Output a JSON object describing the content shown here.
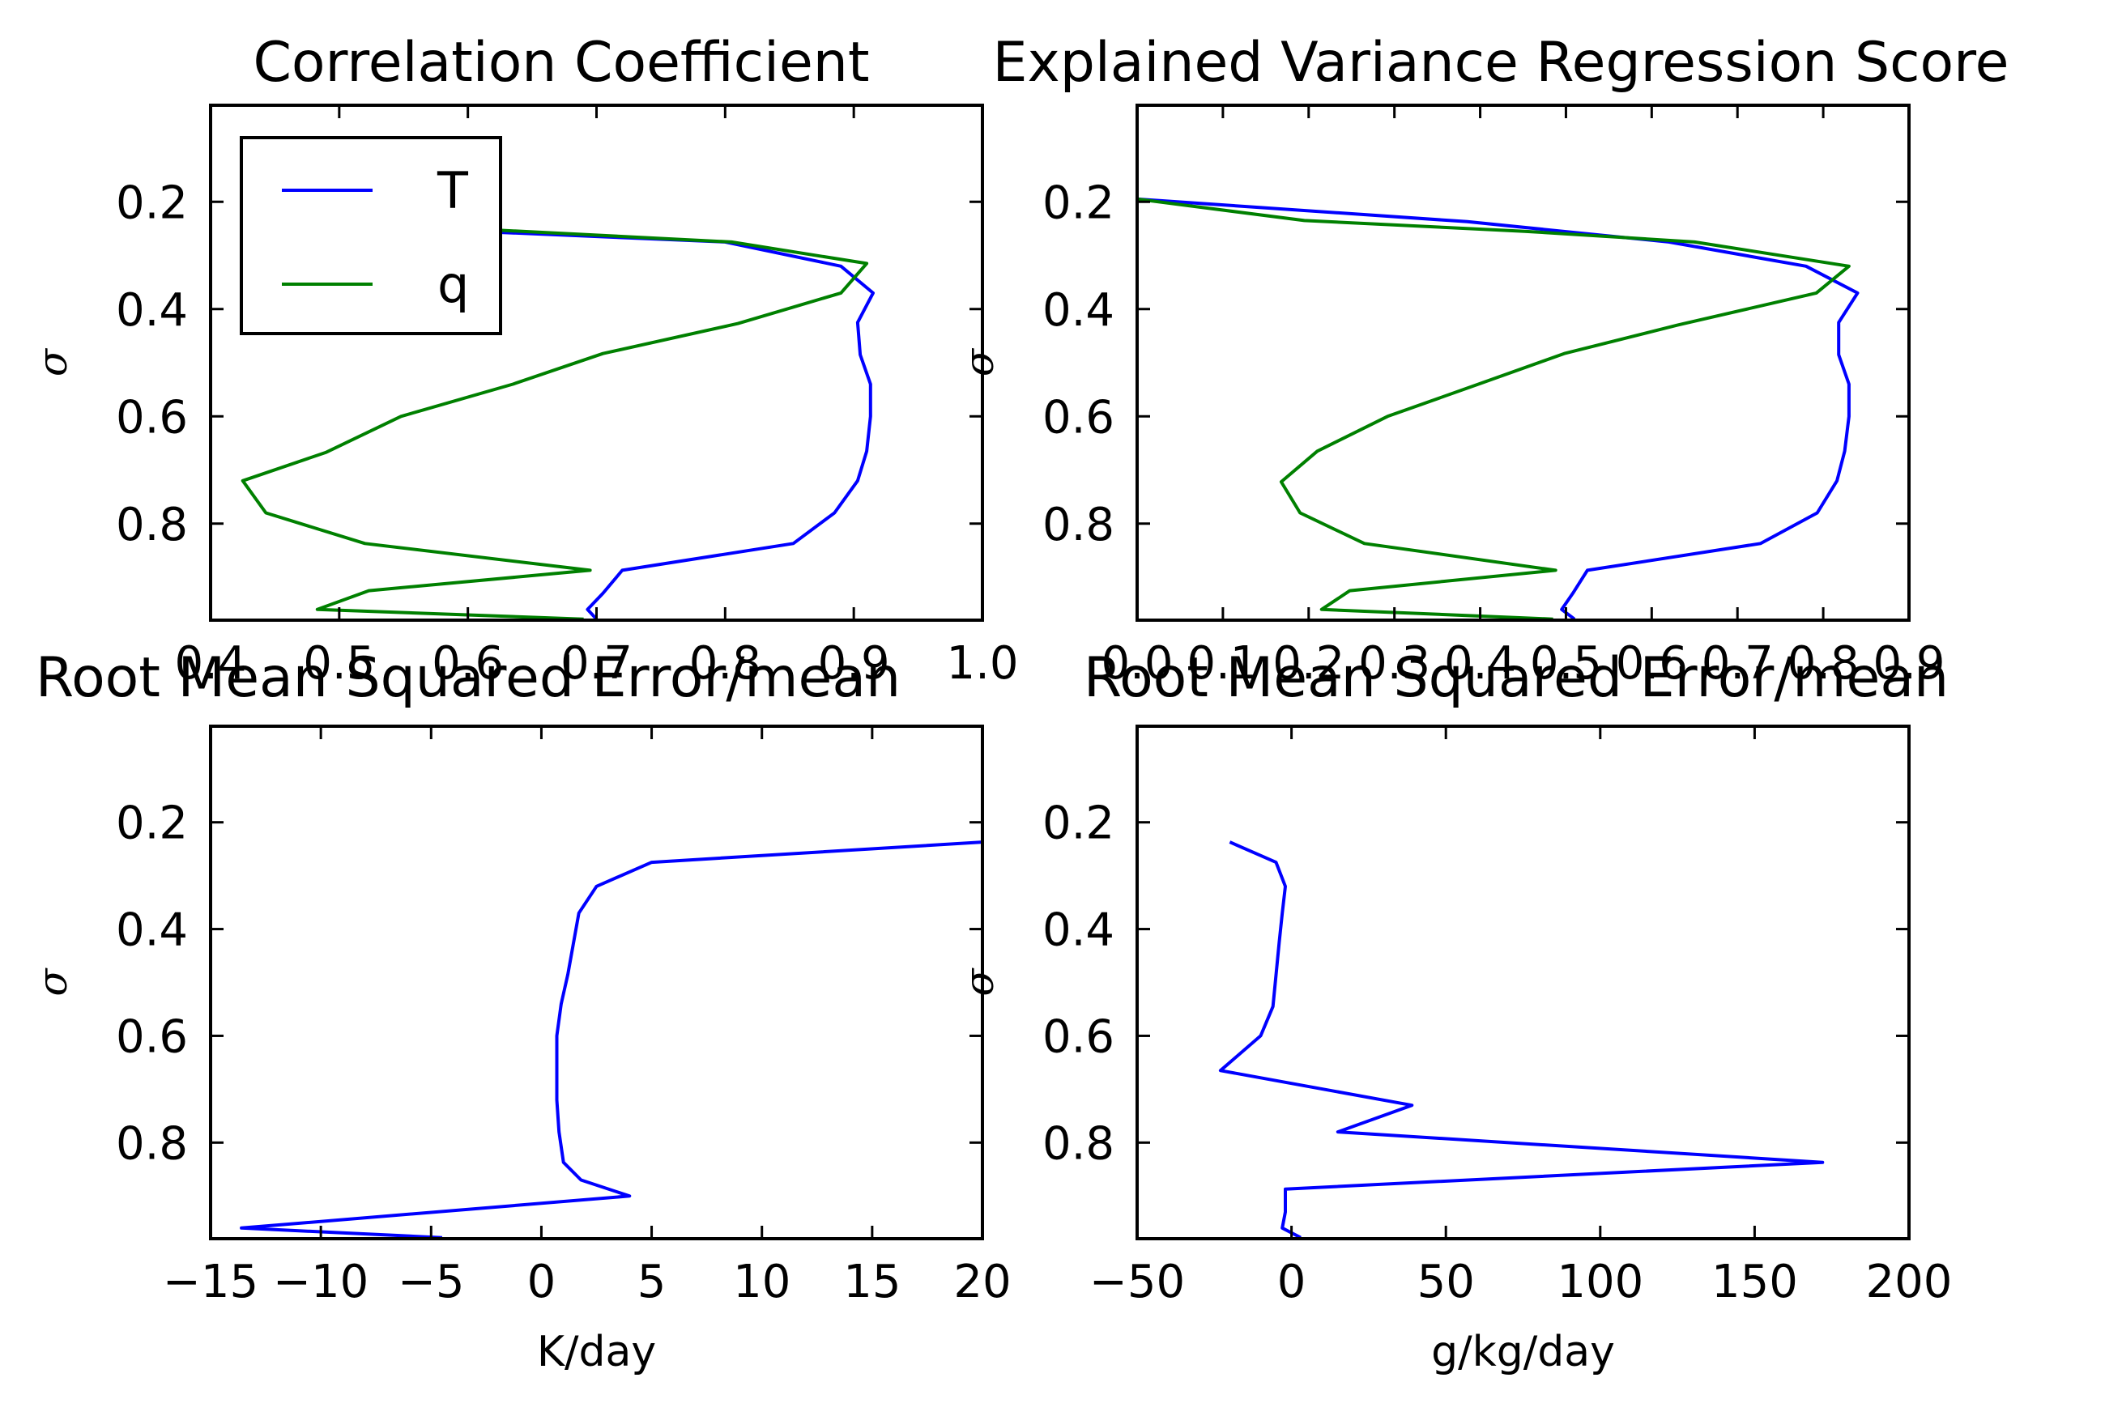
{
  "chart_data": [
    {
      "type": "line",
      "title": "Correlation Coefficient",
      "xlabel": "",
      "ylabel": "σ",
      "xlim": [
        0.4,
        1.0
      ],
      "xticks": [
        "0.4",
        "0.5",
        "0.6",
        "0.7",
        "0.8",
        "0.9",
        "1.0"
      ],
      "ylim": [
        0.98,
        0.02
      ],
      "yticks": [
        "0.2",
        "0.4",
        "0.6",
        "0.8"
      ],
      "legend": {
        "location": "upper-left",
        "entries": [
          "T",
          "q"
        ]
      },
      "series": [
        {
          "name": "T",
          "color": "#0000ff",
          "points": [
            [
              0.43,
              0.237
            ],
            [
              0.8,
              0.275
            ],
            [
              0.89,
              0.32
            ],
            [
              0.915,
              0.37
            ],
            [
              0.903,
              0.425
            ],
            [
              0.905,
              0.485
            ],
            [
              0.913,
              0.54
            ],
            [
              0.913,
              0.6
            ],
            [
              0.91,
              0.665
            ],
            [
              0.903,
              0.72
            ],
            [
              0.885,
              0.78
            ],
            [
              0.853,
              0.837
            ],
            [
              0.72,
              0.887
            ],
            [
              0.705,
              0.93
            ],
            [
              0.693,
              0.96
            ],
            [
              0.7,
              0.978
            ]
          ]
        },
        {
          "name": "q",
          "color": "#008000",
          "points": [
            [
              0.6,
              0.25
            ],
            [
              0.805,
              0.275
            ],
            [
              0.91,
              0.315
            ],
            [
              0.89,
              0.37
            ],
            [
              0.81,
              0.427
            ],
            [
              0.705,
              0.483
            ],
            [
              0.635,
              0.54
            ],
            [
              0.548,
              0.6
            ],
            [
              0.49,
              0.667
            ],
            [
              0.425,
              0.72
            ],
            [
              0.443,
              0.78
            ],
            [
              0.52,
              0.837
            ],
            [
              0.695,
              0.887
            ],
            [
              0.523,
              0.925
            ],
            [
              0.483,
              0.96
            ],
            [
              0.69,
              0.978
            ]
          ]
        }
      ]
    },
    {
      "type": "line",
      "title": "Explained Variance Regression Score",
      "xlabel": "",
      "ylabel": "σ",
      "xlim": [
        0.0,
        0.9
      ],
      "xticks": [
        "0.0",
        "0.1",
        "0.2",
        "0.3",
        "0.4",
        "0.5",
        "0.6",
        "0.7",
        "0.8",
        "0.9"
      ],
      "ylim": [
        0.98,
        0.02
      ],
      "yticks": [
        "0.2",
        "0.4",
        "0.6",
        "0.8"
      ],
      "series": [
        {
          "name": "T",
          "color": "#0000ff",
          "points": [
            [
              0.0,
              0.195
            ],
            [
              0.385,
              0.237
            ],
            [
              0.62,
              0.275
            ],
            [
              0.78,
              0.32
            ],
            [
              0.84,
              0.37
            ],
            [
              0.818,
              0.425
            ],
            [
              0.818,
              0.485
            ],
            [
              0.83,
              0.54
            ],
            [
              0.83,
              0.6
            ],
            [
              0.825,
              0.665
            ],
            [
              0.816,
              0.72
            ],
            [
              0.793,
              0.78
            ],
            [
              0.727,
              0.837
            ],
            [
              0.525,
              0.887
            ],
            [
              0.508,
              0.93
            ],
            [
              0.495,
              0.96
            ],
            [
              0.51,
              0.978
            ]
          ]
        },
        {
          "name": "q",
          "color": "#008000",
          "points": [
            [
              0.0,
              0.195
            ],
            [
              0.195,
              0.235
            ],
            [
              0.452,
              0.255
            ],
            [
              0.65,
              0.275
            ],
            [
              0.83,
              0.32
            ],
            [
              0.792,
              0.37
            ],
            [
              0.63,
              0.43
            ],
            [
              0.498,
              0.483
            ],
            [
              0.398,
              0.54
            ],
            [
              0.292,
              0.6
            ],
            [
              0.21,
              0.665
            ],
            [
              0.168,
              0.722
            ],
            [
              0.19,
              0.78
            ],
            [
              0.265,
              0.837
            ],
            [
              0.488,
              0.887
            ],
            [
              0.248,
              0.925
            ],
            [
              0.215,
              0.96
            ],
            [
              0.485,
              0.978
            ]
          ]
        }
      ]
    },
    {
      "type": "line",
      "title": "Root Mean Squared Error/mean",
      "xlabel": "K/day",
      "ylabel": "σ",
      "xlim": [
        -15,
        20
      ],
      "xticks": [
        "−15",
        "−10",
        "−5",
        "0",
        "5",
        "10",
        "15",
        "20"
      ],
      "ylim": [
        0.98,
        0.02
      ],
      "yticks": [
        "0.2",
        "0.4",
        "0.6",
        "0.8"
      ],
      "series": [
        {
          "name": "T",
          "color": "#0000ff",
          "points": [
            [
              20,
              0.237
            ],
            [
              5,
              0.275
            ],
            [
              2.5,
              0.32
            ],
            [
              1.7,
              0.37
            ],
            [
              1.2,
              0.485
            ],
            [
              0.9,
              0.54
            ],
            [
              0.7,
              0.6
            ],
            [
              0.7,
              0.665
            ],
            [
              0.7,
              0.72
            ],
            [
              0.8,
              0.78
            ],
            [
              1.0,
              0.837
            ],
            [
              1.8,
              0.87
            ],
            [
              4.0,
              0.9
            ],
            [
              -13.6,
              0.96
            ],
            [
              -4.5,
              0.978
            ]
          ]
        }
      ]
    },
    {
      "type": "line",
      "title": "Root Mean Squared Error/mean",
      "xlabel": "g/kg/day",
      "ylabel": "σ",
      "xlim": [
        -50,
        200
      ],
      "xticks": [
        "−50",
        "0",
        "50",
        "100",
        "150",
        "200"
      ],
      "ylim": [
        0.98,
        0.02
      ],
      "yticks": [
        "0.2",
        "0.4",
        "0.6",
        "0.8"
      ],
      "series": [
        {
          "name": "q",
          "color": "#0000ff",
          "points": [
            [
              -20,
              0.237
            ],
            [
              -5,
              0.275
            ],
            [
              -2,
              0.32
            ],
            [
              -3,
              0.37
            ],
            [
              -4,
              0.425
            ],
            [
              -6,
              0.545
            ],
            [
              -10,
              0.6
            ],
            [
              -23,
              0.665
            ],
            [
              39,
              0.73
            ],
            [
              15,
              0.78
            ],
            [
              172,
              0.837
            ],
            [
              -2,
              0.887
            ],
            [
              -2,
              0.93
            ],
            [
              -3,
              0.96
            ],
            [
              3,
              0.978
            ]
          ]
        }
      ]
    }
  ]
}
